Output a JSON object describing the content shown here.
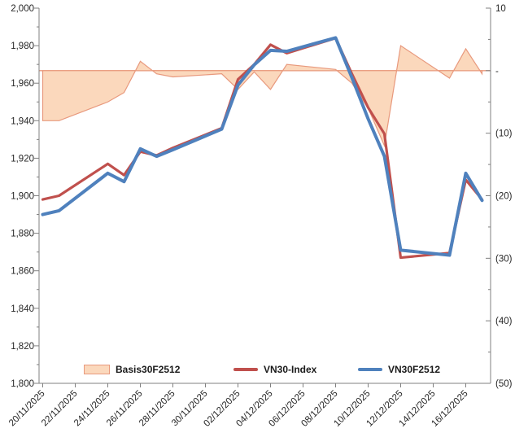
{
  "chart_data": {
    "type": "combo",
    "title": "",
    "x_tick_labels": [
      "20/11/2025",
      "22/11/2025",
      "24/11/2025",
      "26/11/2025",
      "28/11/2025",
      "30/11/2025",
      "02/12/2025",
      "04/12/2025",
      "06/12/2025",
      "08/12/2025",
      "10/12/2025",
      "12/12/2025",
      "14/12/2025",
      "16/12/2025"
    ],
    "dates": [
      "20/11",
      "21/11",
      "24/11",
      "25/11",
      "26/11",
      "27/11",
      "28/11",
      "01/12",
      "02/12",
      "03/12",
      "04/12",
      "05/12",
      "08/12",
      "09/12",
      "10/12",
      "11/12",
      "12/12",
      "15/12",
      "16/12",
      "17/12"
    ],
    "day_offsets": [
      0,
      1,
      4,
      5,
      6,
      7,
      8,
      11,
      12,
      13,
      14,
      15,
      18,
      19,
      20,
      21,
      22,
      25,
      26,
      27
    ],
    "series": [
      {
        "name": "Basis30F2512",
        "type": "area",
        "axis": "right",
        "values": [
          -8,
          -8,
          -5,
          -3.5,
          1.5,
          -0.5,
          -1,
          -0.5,
          -3,
          -0.2,
          -3,
          1,
          0.2,
          -2,
          -6,
          -12,
          4,
          -1.2,
          3.5,
          -0.5
        ]
      },
      {
        "name": "VN30-Index",
        "type": "line",
        "axis": "left",
        "values": [
          1898,
          1900,
          1917,
          1911,
          1923.5,
          1921.5,
          1925.5,
          1936,
          1962,
          1970,
          1980.5,
          1976,
          1984,
          1965,
          1947,
          1933,
          1867,
          1869.5,
          1908.5,
          1898
        ]
      },
      {
        "name": "VN30F2512",
        "type": "line",
        "axis": "left",
        "values": [
          1890,
          1892,
          1912,
          1907.5,
          1925,
          1921,
          1924.5,
          1935.5,
          1959,
          1969.8,
          1977.5,
          1977,
          1984.2,
          1963,
          1941,
          1921,
          1871,
          1868.3,
          1912,
          1897.5
        ]
      }
    ],
    "left_axis": {
      "min": 1800,
      "max": 2000,
      "major_step": 20,
      "minor_step": 10,
      "tick_labels": [
        "2,000",
        "1,980",
        "1,960",
        "1,940",
        "1,920",
        "1,900",
        "1,880",
        "1,860",
        "1,840",
        "1,820",
        "1,800"
      ]
    },
    "right_axis": {
      "min": -50,
      "max": 10,
      "major_step": 10,
      "minor_step": 5,
      "tick_labels": [
        "10",
        "-",
        "(10)",
        "(20)",
        "(30)",
        "(40)",
        "(50)"
      ]
    },
    "legend": [
      "Basis30F2512",
      "VN30-Index",
      "VN30F2512"
    ],
    "legend_position": "bottom-inside",
    "grid": "off",
    "colors": {
      "area_fill": "#FBD8BC",
      "area_stroke": "#E8997D",
      "vn30_line": "#C0504D",
      "vn30f_line": "#4F81BD",
      "axis": "#808080",
      "tick_text": "#262626"
    }
  }
}
